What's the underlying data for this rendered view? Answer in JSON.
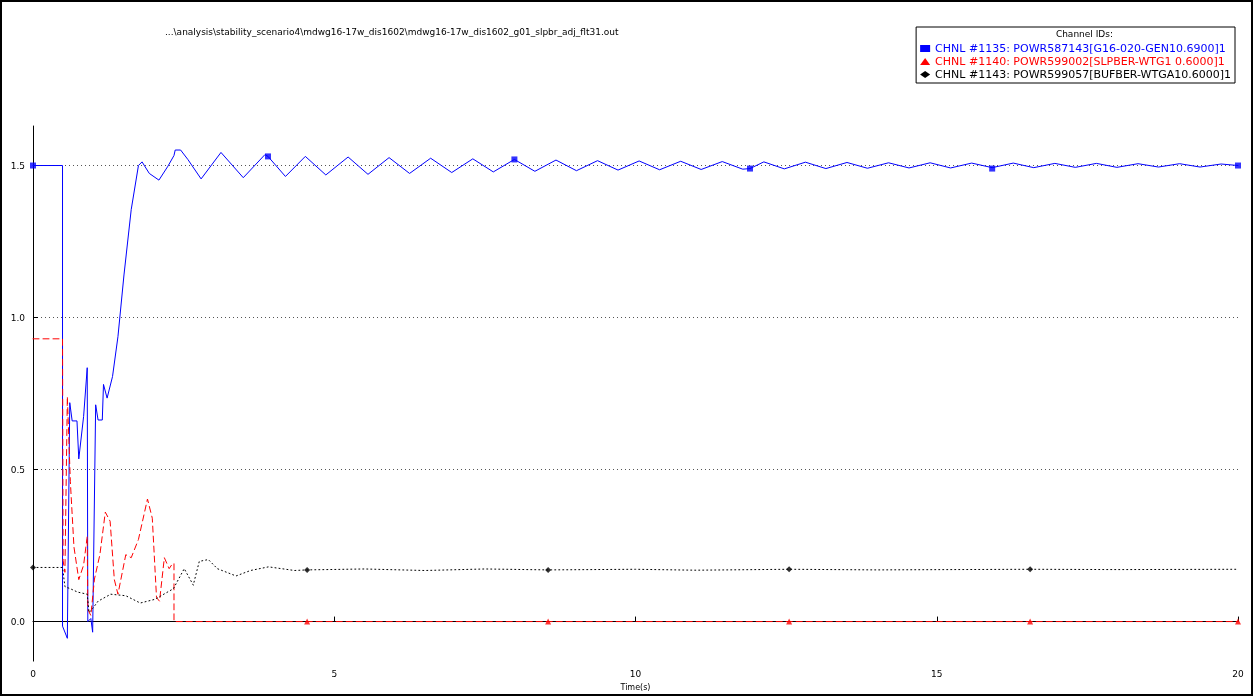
{
  "chart_data": {
    "type": "line",
    "title": "...\\analysis\\stability_scenario4\\mdwg16-17w_dis1602\\mdwg16-17w_dis1602_g01_slpbr_adj_flt31.out",
    "xlabel": "Time(s)",
    "legend_title": "Channel IDs:",
    "legend": "top right",
    "grid": "y",
    "xlim": [
      0,
      20
    ],
    "xticks": [
      0,
      5,
      10,
      15,
      20
    ],
    "ylim": [
      -0.13,
      1.63
    ],
    "yticks": [
      {
        "value": 0,
        "label": "0.0"
      },
      {
        "value": 0.5,
        "label": "0.5"
      },
      {
        "value": 1,
        "label": "1.0"
      },
      {
        "value": 1.5,
        "label": "1.5"
      }
    ],
    "series": [
      {
        "name": "CHNL #1135: POWR587143[G16-020-GEN10.6900]1",
        "color": "#0000ff",
        "line_style": "solid",
        "x": [
          0,
          0.49,
          0.49,
          0.57,
          0.61,
          0.65,
          0.73,
          0.76,
          0.84,
          0.9,
          0.91,
          0.96,
          0.99,
          1.04,
          1.08,
          1.15,
          1.17,
          1.23,
          1.32,
          1.41,
          1.51,
          1.63,
          1.75,
          1.81,
          1.93,
          2.09,
          2.24,
          2.34,
          2.36,
          2.45,
          2.57,
          2.79,
          3.12,
          3.49,
          3.85,
          3.9,
          4.19,
          4.52,
          4.86,
          5.23,
          5.56,
          5.91,
          6.25,
          6.6,
          6.95,
          7.3,
          7.64,
          7.99,
          8.33,
          8.68,
          9.02,
          9.37,
          9.71,
          10.06,
          10.4,
          10.75,
          11.09,
          11.44,
          11.78,
          11.9,
          12.13,
          12.47,
          12.82,
          13.16,
          13.51,
          13.85,
          14.2,
          14.54,
          14.89,
          15.23,
          15.58,
          15.92,
          16.27,
          16.61,
          16.96,
          17.3,
          17.65,
          17.99,
          18.34,
          18.68,
          19.03,
          19.37,
          19.72,
          20
        ],
        "values": [
          1.5,
          1.5,
          -0.015,
          -0.055,
          0.72,
          0.66,
          0.66,
          0.535,
          0.675,
          0.835,
          0,
          0.01,
          -0.035,
          0.713,
          0.663,
          0.663,
          0.78,
          0.735,
          0.806,
          0.937,
          1.14,
          1.355,
          1.5,
          1.512,
          1.474,
          1.452,
          1.498,
          1.533,
          1.551,
          1.551,
          1.52,
          1.456,
          1.543,
          1.46,
          1.536,
          1.53,
          1.464,
          1.53,
          1.469,
          1.528,
          1.471,
          1.526,
          1.474,
          1.524,
          1.477,
          1.522,
          1.479,
          1.52,
          1.481,
          1.518,
          1.483,
          1.516,
          1.485,
          1.515,
          1.486,
          1.514,
          1.487,
          1.513,
          1.488,
          1.49,
          1.512,
          1.489,
          1.511,
          1.49,
          1.51,
          1.491,
          1.509,
          1.492,
          1.509,
          1.492,
          1.508,
          1.493,
          1.508,
          1.493,
          1.507,
          1.494,
          1.507,
          1.494,
          1.506,
          1.495,
          1.506,
          1.495,
          1.505,
          1.5
        ]
      },
      {
        "name": "CHNL #1140: POWR599002[SLPBER-WTG1 0.6000]1",
        "color": "#ff0000",
        "line_style": "dashed",
        "x": [
          0,
          0.49,
          0.5,
          0.53,
          0.57,
          0.62,
          0.68,
          0.76,
          0.84,
          0.9,
          0.91,
          0.96,
          1.02,
          1.11,
          1.2,
          1.28,
          1.35,
          1.41,
          1.54,
          1.63,
          1.75,
          1.9,
          1.98,
          2.05,
          2.1,
          2.18,
          2.26,
          2.3,
          2.34,
          2.34,
          4.55,
          8.55,
          12.55,
          16.55,
          20
        ],
        "values": [
          0.93,
          0.93,
          0.2,
          0.162,
          0.74,
          0.46,
          0.245,
          0.138,
          0.186,
          0.28,
          0.04,
          0.02,
          0.14,
          0.22,
          0.36,
          0.33,
          0.138,
          0.09,
          0.22,
          0.21,
          0.27,
          0.403,
          0.34,
          0.079,
          0.067,
          0.21,
          0.174,
          0.186,
          0.192,
          0,
          0,
          0,
          0,
          0,
          0
        ]
      },
      {
        "name": "CHNL #1143: POWR599057[BUFBER-WTGA10.6000]1",
        "color": "#000000",
        "line_style": "dotted",
        "x": [
          0,
          0.49,
          0.53,
          0.62,
          0.74,
          0.9,
          0.93,
          0.99,
          1.08,
          1.29,
          1.54,
          1.78,
          2.02,
          2.33,
          2.51,
          2.66,
          2.76,
          2.91,
          3.06,
          3.37,
          3.61,
          3.91,
          4.34,
          4.55,
          5.5,
          6.5,
          7.5,
          8.55,
          10,
          11,
          12.55,
          14,
          16.55,
          18,
          20
        ],
        "values": [
          0.178,
          0.178,
          0.115,
          0.108,
          0.097,
          0.09,
          0.03,
          0.043,
          0.067,
          0.09,
          0.085,
          0.061,
          0.073,
          0.108,
          0.174,
          0.12,
          0.198,
          0.204,
          0.174,
          0.15,
          0.168,
          0.18,
          0.168,
          0.17,
          0.173,
          0.168,
          0.173,
          0.17,
          0.172,
          0.169,
          0.172,
          0.17,
          0.172,
          0.171,
          0.172
        ]
      },
      {
        "type": "scatter",
        "color": "#0000ff",
        "marker": "square",
        "x": [
          0,
          3.9,
          7.99,
          11.9,
          15.92,
          20
        ],
        "values": [
          1.5,
          1.53,
          1.52,
          1.49,
          1.49,
          1.5
        ]
      },
      {
        "type": "scatter",
        "color": "#ff0000",
        "marker": "triangle",
        "x": [
          4.55,
          8.55,
          12.55,
          16.55,
          20
        ],
        "values": [
          0,
          0,
          0,
          0,
          0
        ]
      },
      {
        "type": "scatter",
        "color": "#000000",
        "marker": "diamond",
        "x": [
          0,
          4.55,
          8.55,
          12.55,
          16.55
        ],
        "values": [
          0.178,
          0.17,
          0.17,
          0.172,
          0.172
        ]
      }
    ]
  }
}
